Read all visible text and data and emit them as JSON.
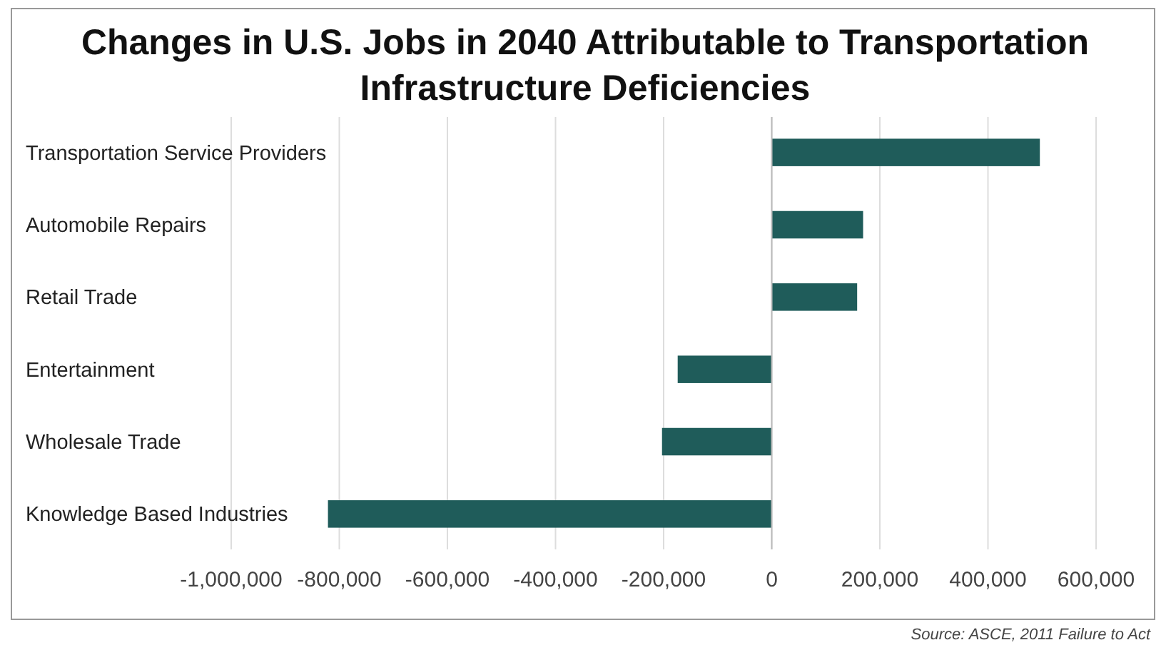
{
  "chart_data": {
    "type": "bar",
    "orientation": "horizontal",
    "title": "Changes in U.S. Jobs in 2040 Attributable to Transportation Infrastructure Deficiencies",
    "categories": [
      "Transportation Service Providers",
      "Automobile Repairs",
      "Retail Trade",
      "Entertainment",
      "Wholesale Trade",
      "Knowledge Based Industries"
    ],
    "values": [
      496000,
      169000,
      158000,
      -174000,
      -203000,
      -821000
    ],
    "color": "#1f5c5a",
    "xlim": [
      -1000000,
      600000
    ],
    "xticks": [
      {
        "value": -1000000,
        "label": "-1,000,000"
      },
      {
        "value": -800000,
        "label": "-800,000"
      },
      {
        "value": -600000,
        "label": "-600,000"
      },
      {
        "value": -400000,
        "label": "-400,000"
      },
      {
        "value": -200000,
        "label": "-200,000"
      },
      0,
      {
        "value": 200000,
        "label": "200,000"
      },
      {
        "value": 400000,
        "label": "400,000"
      },
      {
        "value": 600000,
        "label": "600,000"
      }
    ],
    "grid": "x",
    "annotations": [
      "Source: ASCE, 2011 Failure to Act"
    ]
  }
}
